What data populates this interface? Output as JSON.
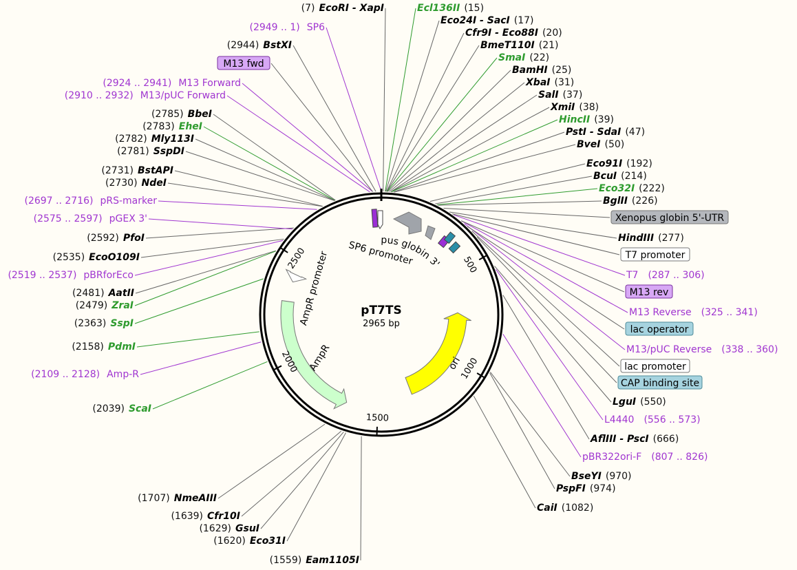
{
  "map": {
    "name": "pT7TS",
    "size_label": "2965 bp",
    "total_bp": 2965
  },
  "ticks": [
    {
      "bp": 500,
      "label": "500"
    },
    {
      "bp": 1000,
      "label": "1000"
    },
    {
      "bp": 1500,
      "label": "1500"
    },
    {
      "bp": 2000,
      "label": "2000"
    },
    {
      "bp": 2500,
      "label": "2500"
    }
  ],
  "enzymes_right": [
    {
      "pos": "(15)",
      "name": "Ecl136II",
      "color": "green",
      "bp": 15
    },
    {
      "pos": "(17)",
      "name": "Eco24I - SacI",
      "color": "black",
      "bp": 17
    },
    {
      "pos": "(20)",
      "name": "Cfr9I - Eco88I",
      "color": "black",
      "bp": 20
    },
    {
      "pos": "(21)",
      "name": "BmeT110I",
      "color": "black",
      "bp": 21
    },
    {
      "pos": "(22)",
      "name": "SmaI",
      "color": "green",
      "bp": 22
    },
    {
      "pos": "(25)",
      "name": "BamHI",
      "color": "black",
      "bp": 25
    },
    {
      "pos": "(31)",
      "name": "XbaI",
      "color": "black",
      "bp": 31
    },
    {
      "pos": "(37)",
      "name": "SalI",
      "color": "black",
      "bp": 37
    },
    {
      "pos": "(38)",
      "name": "XmiI",
      "color": "black",
      "bp": 38
    },
    {
      "pos": "(39)",
      "name": "HincII",
      "color": "green",
      "bp": 39
    },
    {
      "pos": "(47)",
      "name": "PstI - SdaI",
      "color": "black",
      "bp": 47
    },
    {
      "pos": "(50)",
      "name": "BveI",
      "color": "black",
      "bp": 50
    },
    {
      "pos": "(192)",
      "name": "Eco91I",
      "color": "black",
      "bp": 192
    },
    {
      "pos": "(214)",
      "name": "BcuI",
      "color": "black",
      "bp": 214
    },
    {
      "pos": "(222)",
      "name": "Eco32I",
      "color": "green",
      "bp": 222
    },
    {
      "pos": "(226)",
      "name": "BglII",
      "color": "black",
      "bp": 226
    },
    {
      "pos": "(277)",
      "name": "HindIII",
      "color": "black",
      "bp": 277
    },
    {
      "pos": "(550)",
      "name": "LguI",
      "color": "black",
      "bp": 550
    },
    {
      "pos": "(666)",
      "name": "AflIII - PscI",
      "color": "black",
      "bp": 666
    },
    {
      "pos": "(970)",
      "name": "BseYI",
      "color": "black",
      "bp": 970
    },
    {
      "pos": "(974)",
      "name": "PspFI",
      "color": "black",
      "bp": 974
    },
    {
      "pos": "(1082)",
      "name": "CaiI",
      "color": "black",
      "bp": 1082
    }
  ],
  "enzymes_left": [
    {
      "pos": "(7)",
      "name": "EcoRI - XapI",
      "color": "black",
      "bp": 7
    },
    {
      "pos": "(2944)",
      "name": "BstXI",
      "color": "black",
      "bp": 2944
    },
    {
      "pos": "(2785)",
      "name": "BbeI",
      "color": "black",
      "bp": 2785
    },
    {
      "pos": "(2783)",
      "name": "EheI",
      "color": "green",
      "bp": 2783
    },
    {
      "pos": "(2782)",
      "name": "Mly113I",
      "color": "black",
      "bp": 2782
    },
    {
      "pos": "(2781)",
      "name": "SspDI",
      "color": "black",
      "bp": 2781
    },
    {
      "pos": "(2731)",
      "name": "BstAPI",
      "color": "black",
      "bp": 2731
    },
    {
      "pos": "(2730)",
      "name": "NdeI",
      "color": "black",
      "bp": 2730
    },
    {
      "pos": "(2592)",
      "name": "PfoI",
      "color": "black",
      "bp": 2592
    },
    {
      "pos": "(2535)",
      "name": "EcoO109I",
      "color": "black",
      "bp": 2535
    },
    {
      "pos": "(2481)",
      "name": "AatII",
      "color": "black",
      "bp": 2481
    },
    {
      "pos": "(2479)",
      "name": "ZraI",
      "color": "green",
      "bp": 2479
    },
    {
      "pos": "(2363)",
      "name": "SspI",
      "color": "green",
      "bp": 2363
    },
    {
      "pos": "(2158)",
      "name": "PdmI",
      "color": "green",
      "bp": 2158
    },
    {
      "pos": "(2039)",
      "name": "ScaI",
      "color": "green",
      "bp": 2039
    },
    {
      "pos": "(1707)",
      "name": "NmeAIII",
      "color": "black",
      "bp": 1707
    },
    {
      "pos": "(1639)",
      "name": "Cfr10I",
      "color": "black",
      "bp": 1639
    },
    {
      "pos": "(1629)",
      "name": "GsuI",
      "color": "black",
      "bp": 1629
    },
    {
      "pos": "(1620)",
      "name": "Eco31I",
      "color": "black",
      "bp": 1620
    },
    {
      "pos": "(1559)",
      "name": "Eam1105I",
      "color": "black",
      "bp": 1559
    }
  ],
  "primers_left": [
    {
      "range": "(2949 .. 1)",
      "name": "SP6",
      "bp": 2965
    },
    {
      "range": "(2924 .. 2941)",
      "name": "M13 Forward",
      "bp": 2932
    },
    {
      "range": "(2910 .. 2932)",
      "name": "M13/pUC Forward",
      "bp": 2921
    },
    {
      "range": "(2697 .. 2716)",
      "name": "pRS-marker",
      "bp": 2706
    },
    {
      "range": "(2575 .. 2597)",
      "name": "pGEX 3'",
      "bp": 2586
    },
    {
      "range": "(2519 .. 2537)",
      "name": "pBRforEco",
      "bp": 2528
    },
    {
      "range": "(2109 .. 2128)",
      "name": "Amp-R",
      "bp": 2118
    }
  ],
  "primers_right": [
    {
      "name": "T7",
      "range": "(287 .. 306)",
      "bp": 296
    },
    {
      "name": "M13 Reverse",
      "range": "(325 .. 341)",
      "bp": 333
    },
    {
      "name": "M13/pUC Reverse",
      "range": "(338 .. 360)",
      "bp": 349
    },
    {
      "name": "L4440",
      "range": "(556 .. 573)",
      "bp": 564
    },
    {
      "name": "pBR322ori-F",
      "range": "(807 .. 826)",
      "bp": 816
    }
  ],
  "feature_boxes": [
    {
      "label": "M13 fwd",
      "style": "purple",
      "bp": 2932
    },
    {
      "label": "Xenopus globin 5'-UTR",
      "style": "gray",
      "bp": 250
    },
    {
      "label": "T7 promoter",
      "style": "white",
      "bp": 290
    },
    {
      "label": "M13 rev",
      "style": "purple",
      "bp": 333
    },
    {
      "label": "lac operator",
      "style": "teal",
      "bp": 365
    },
    {
      "label": "lac promoter",
      "style": "white",
      "bp": 390
    },
    {
      "label": "CAP binding site",
      "style": "teal",
      "bp": 420
    }
  ],
  "features": [
    {
      "name": "ori",
      "start": 1310,
      "end": 730,
      "color": "#ffff00",
      "label": "ori"
    },
    {
      "name": "AmpR",
      "start": 2290,
      "end": 1660,
      "color": "#ccffcc",
      "label": "AmpR"
    },
    {
      "name": "AmpR promoter",
      "start": 2430,
      "end": 2390,
      "color": "#ffffff",
      "label": "AmpR promoter"
    },
    {
      "name": "SP6 promoter",
      "start": 2960,
      "end": 30,
      "color": "#ffffff",
      "label": "SP6 promoter"
    },
    {
      "name": "Xenopus globin 3'-UTR",
      "start": 120,
      "end": 60,
      "color": "#a0a4aa",
      "label": "Xenopus globin 3'-UTR"
    }
  ],
  "colors": {
    "green": "#2e9b2e",
    "purple": "#a035d0",
    "black": "#000000",
    "box_purple_fill": "#d7a8f5",
    "box_gray_fill": "#b5b8bd",
    "box_teal_fill": "#a6d3df"
  }
}
